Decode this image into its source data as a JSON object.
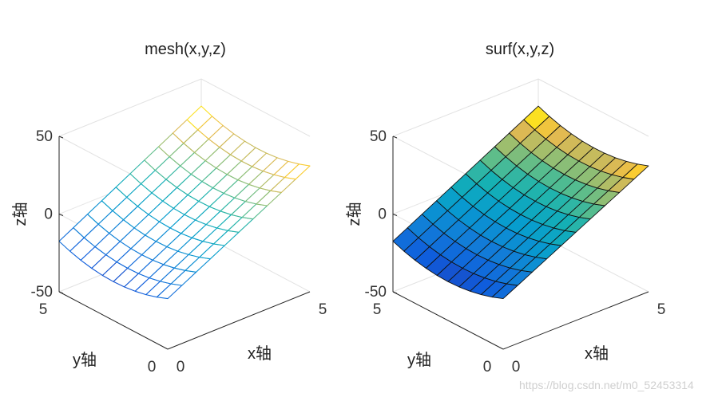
{
  "watermark": "https://blog.csdn.net/m0_52453314",
  "chart_data": [
    {
      "type": "mesh",
      "title": "mesh(x,y,z)",
      "xlabel": "x轴",
      "ylabel": "y轴",
      "zlabel": "z轴",
      "xlim": [
        0,
        5
      ],
      "ylim": [
        0,
        5
      ],
      "zlim": [
        -50,
        50
      ],
      "xticks": [
        "0",
        "5"
      ],
      "yticks": [
        "0",
        "5"
      ],
      "zticks": [
        "50",
        "0",
        "-50"
      ],
      "grid": "on",
      "colormap": "parula",
      "x": [
        0,
        0.5,
        1,
        1.5,
        2,
        2.5,
        3,
        3.5,
        4,
        4.5,
        5
      ],
      "y": [
        0,
        0.5,
        1,
        1.5,
        2,
        2.5,
        3,
        3.5,
        4,
        4.5,
        5
      ],
      "z_description": "surface rising from about -25 at x=0 to about +25 at x=5, with slight bowing along y"
    },
    {
      "type": "surf",
      "title": "surf(x,y,z)",
      "xlabel": "x轴",
      "ylabel": "y轴",
      "zlabel": "z轴",
      "xlim": [
        0,
        5
      ],
      "ylim": [
        0,
        5
      ],
      "zlim": [
        -50,
        50
      ],
      "xticks": [
        "0",
        "5"
      ],
      "yticks": [
        "0",
        "5"
      ],
      "zticks": [
        "50",
        "0",
        "-50"
      ],
      "grid": "on",
      "colormap": "parula",
      "x": [
        0,
        0.5,
        1,
        1.5,
        2,
        2.5,
        3,
        3.5,
        4,
        4.5,
        5
      ],
      "y": [
        0,
        0.5,
        1,
        1.5,
        2,
        2.5,
        3,
        3.5,
        4,
        4.5,
        5
      ],
      "z_description": "same surface as left panel, rendered with filled faces"
    }
  ]
}
